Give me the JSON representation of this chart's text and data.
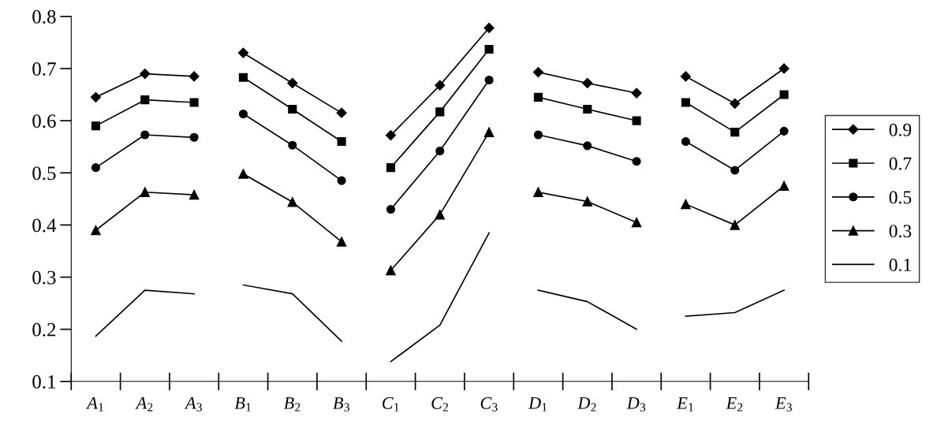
{
  "chart_data": {
    "type": "line",
    "categories": [
      "A$_{1}$",
      "A$_{2}$",
      "A$_{3}$",
      "B$_{1}$",
      "B$_{2}$",
      "B$_{3}$",
      "C$_{1}$",
      "C$_{2}$",
      "C$_{3}$",
      "D$_{1}$",
      "D$_{2}$",
      "D$_{3}$",
      "E$_{1}$",
      "E$_{2}$",
      "E$_{3}$"
    ],
    "series": [
      {
        "name": "0.9",
        "color": "#000000",
        "marker": "diamond",
        "values": [
          0.645,
          0.69,
          0.685,
          0.73,
          0.672,
          0.615,
          0.572,
          0.668,
          0.778,
          0.693,
          0.672,
          0.653,
          0.685,
          0.633,
          0.7
        ]
      },
      {
        "name": "0.7",
        "color": "#000000",
        "marker": "square",
        "values": [
          0.59,
          0.64,
          0.635,
          0.683,
          0.622,
          0.56,
          0.51,
          0.617,
          0.737,
          0.645,
          0.622,
          0.6,
          0.635,
          0.578,
          0.65
        ]
      },
      {
        "name": "0.5",
        "color": "#000000",
        "marker": "circle",
        "values": [
          0.51,
          0.573,
          0.568,
          0.613,
          0.553,
          0.485,
          0.43,
          0.542,
          0.678,
          0.573,
          0.552,
          0.522,
          0.56,
          0.505,
          0.58
        ]
      },
      {
        "name": "0.3",
        "color": "#000000",
        "marker": "triangle",
        "values": [
          0.39,
          0.463,
          0.458,
          0.498,
          0.444,
          0.368,
          0.313,
          0.42,
          0.578,
          0.463,
          0.445,
          0.405,
          0.44,
          0.4,
          0.475
        ]
      },
      {
        "name": "0.1",
        "color": "#000000",
        "marker": "none",
        "values": [
          0.187,
          0.275,
          0.268,
          0.285,
          0.268,
          0.177,
          0.138,
          0.208,
          0.385,
          0.275,
          0.253,
          0.2,
          0.225,
          0.232,
          0.275
        ]
      }
    ],
    "ylim": [
      0.1,
      0.8
    ],
    "yticks": [
      0.1,
      0.2,
      0.3,
      0.4,
      0.5,
      0.6,
      0.7,
      0.8
    ],
    "grid": false,
    "legend": "right",
    "line_style": "solid"
  }
}
